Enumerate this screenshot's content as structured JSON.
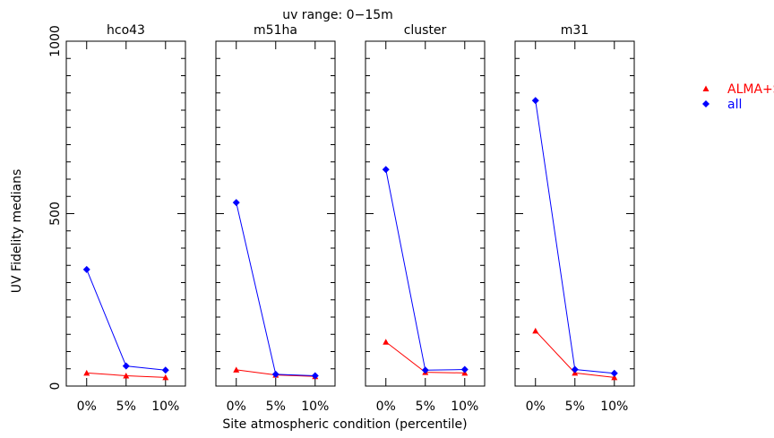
{
  "chart_data": {
    "type": "line",
    "title": "uv range: 0−15m",
    "xlabel": "Site atmospheric condition (percentile)",
    "ylabel": "UV Fidelity medians",
    "categories": [
      "0%",
      "5%",
      "10%"
    ],
    "ylim": [
      0,
      1000
    ],
    "yticks": [
      "0",
      "500",
      "1000"
    ],
    "legend_placement": "top-right outside",
    "panels": [
      {
        "name": "hco43",
        "series": [
          {
            "name": "ALMA+SD",
            "values": [
              38,
              30,
              25
            ]
          },
          {
            "name": "all",
            "values": [
              338,
              58,
              46
            ]
          }
        ]
      },
      {
        "name": "m51ha",
        "series": [
          {
            "name": "ALMA+SD",
            "values": [
              47,
              32,
              28
            ]
          },
          {
            "name": "all",
            "values": [
              532,
              34,
              30
            ]
          }
        ]
      },
      {
        "name": "cluster",
        "series": [
          {
            "name": "ALMA+SD",
            "values": [
              128,
              40,
              38
            ]
          },
          {
            "name": "all",
            "values": [
              628,
              46,
              48
            ]
          }
        ]
      },
      {
        "name": "m31",
        "series": [
          {
            "name": "ALMA+SD",
            "values": [
              160,
              38,
              25
            ]
          },
          {
            "name": "all",
            "values": [
              828,
              48,
              37
            ]
          }
        ]
      }
    ],
    "legend": [
      {
        "name": "ALMA+SD",
        "color": "#ff0000",
        "marker": "triangle"
      },
      {
        "name": "all",
        "color": "#0000ff",
        "marker": "diamond"
      }
    ]
  }
}
